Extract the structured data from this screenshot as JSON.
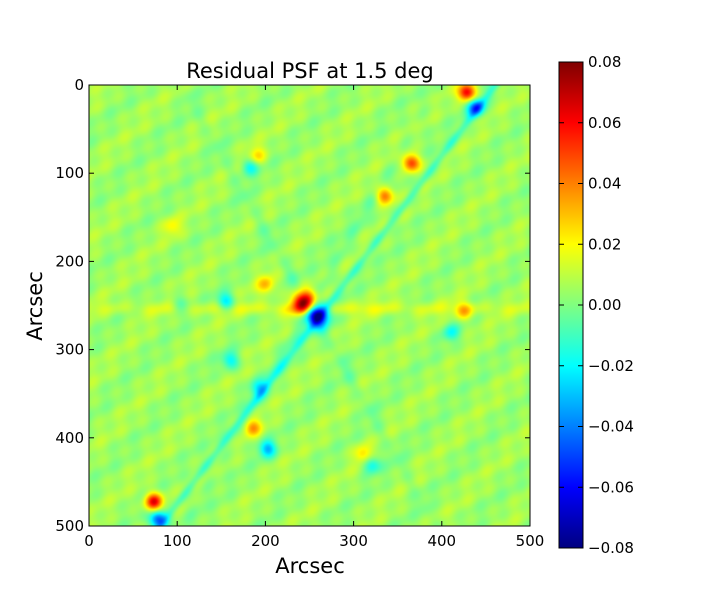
{
  "chart_data": {
    "type": "heatmap",
    "title": "Residual PSF at 1.5 deg",
    "xlabel": "Arcsec",
    "ylabel": "Arcsec",
    "xlim": [
      0,
      500
    ],
    "ylim": [
      500,
      0
    ],
    "x_ticks": [
      0,
      100,
      200,
      300,
      400,
      500
    ],
    "y_ticks": [
      0,
      100,
      200,
      300,
      400,
      500
    ],
    "x_tick_labels": [
      "0",
      "100",
      "200",
      "300",
      "400",
      "500"
    ],
    "y_tick_labels": [
      "0",
      "100",
      "200",
      "300",
      "400",
      "500"
    ],
    "colorbar": {
      "colormap": "jet",
      "range": [
        -0.08,
        0.08
      ],
      "ticks": [
        0.08,
        0.06,
        0.04,
        0.02,
        0.0,
        -0.02,
        -0.04,
        -0.06,
        -0.08
      ],
      "tick_labels": [
        "0.08",
        "0.06",
        "0.04",
        "0.02",
        "0.00",
        "−0.02",
        "−0.04",
        "−0.06",
        "−0.08"
      ]
    },
    "background_value": 0.005,
    "features": [
      {
        "kind": "dipole",
        "pos": 0,
        "value": 0.08,
        "x": 244,
        "y": 246
      },
      {
        "kind": "dipole",
        "pos": 1,
        "value": -0.08,
        "x": 258,
        "y": 260
      },
      {
        "kind": "diagonal_streak",
        "value": -0.015,
        "from": [
          80,
          500
        ],
        "to": [
          460,
          0
        ]
      },
      {
        "kind": "spike",
        "value": 0.012,
        "angle_deg": 0
      },
      {
        "kind": "spike",
        "value": -0.008,
        "angle_deg": 60
      },
      {
        "kind": "spike",
        "value": -0.008,
        "angle_deg": 120
      },
      {
        "kind": "knot",
        "value": 0.05,
        "x": 365,
        "y": 88
      },
      {
        "kind": "knot",
        "value": 0.04,
        "x": 335,
        "y": 125
      },
      {
        "kind": "knot",
        "value": 0.06,
        "x": 428,
        "y": 8
      },
      {
        "kind": "knot",
        "value": -0.05,
        "x": 438,
        "y": 25
      },
      {
        "kind": "knot",
        "value": -0.035,
        "x": 202,
        "y": 412
      },
      {
        "kind": "knot",
        "value": 0.03,
        "x": 185,
        "y": 388
      },
      {
        "kind": "knot",
        "value": 0.06,
        "x": 73,
        "y": 472
      },
      {
        "kind": "knot",
        "value": -0.055,
        "x": 78,
        "y": 492
      },
      {
        "kind": "knot",
        "value": -0.025,
        "x": 160,
        "y": 312
      },
      {
        "kind": "knot",
        "value": -0.025,
        "x": 192,
        "y": 343
      },
      {
        "kind": "knot",
        "value": -0.03,
        "x": 155,
        "y": 245
      },
      {
        "kind": "knot",
        "value": 0.025,
        "x": 200,
        "y": 226
      },
      {
        "kind": "knot",
        "value": 0.025,
        "x": 425,
        "y": 256
      },
      {
        "kind": "knot",
        "value": -0.02,
        "x": 410,
        "y": 280
      },
      {
        "kind": "knot",
        "value": -0.025,
        "x": 182,
        "y": 92
      },
      {
        "kind": "knot",
        "value": 0.02,
        "x": 190,
        "y": 80
      },
      {
        "kind": "knot",
        "value": -0.025,
        "x": 320,
        "y": 430
      },
      {
        "kind": "knot",
        "value": 0.02,
        "x": 310,
        "y": 418
      },
      {
        "kind": "knot",
        "value": -0.015,
        "x": 102,
        "y": 248
      },
      {
        "kind": "knot",
        "value": 0.015,
        "x": 94,
        "y": 160
      }
    ]
  }
}
